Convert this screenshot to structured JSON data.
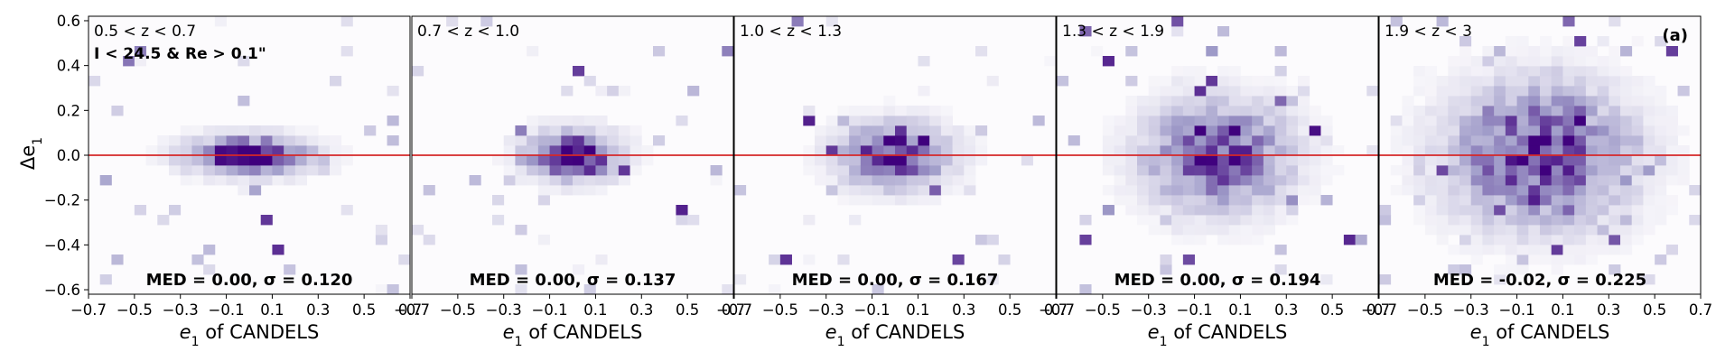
{
  "figure": {
    "ylabel_main": "Δe",
    "ylabel_sub": "1",
    "panel_tag": "(a)",
    "colors": {
      "ref_line": "#d62728",
      "cmap_low": "#fcfbfd",
      "cmap_high": "#3f007d"
    }
  },
  "chart_data": [
    {
      "type": "heatmap",
      "title": "0.5 < z < 0.7",
      "subtitle": "I < 24.5 & Re > 0.1\"",
      "stat": "MED = 0.00, σ = 0.120",
      "xlabel": "of CANDELS",
      "xlabel_var": "e",
      "xlabel_sub": "1",
      "xlim": [
        -0.7,
        0.7
      ],
      "ylim": [
        -0.62,
        0.62
      ],
      "xticks": [
        "−0.7",
        "−0.5",
        "−0.3",
        "−0.1",
        "0.1",
        "0.3",
        "0.5",
        "0.7"
      ],
      "reference_line_y": 0.0,
      "spread_x": 0.17,
      "spread_y": 0.055,
      "noise": 0.35,
      "peak": 1.0,
      "seed": 11
    },
    {
      "type": "heatmap",
      "title": "0.7 < z < 1.0",
      "stat": "MED = 0.00, σ = 0.137",
      "xlabel": "of CANDELS",
      "xlabel_var": "e",
      "xlabel_sub": "1",
      "xlim": [
        -0.7,
        0.7
      ],
      "ylim": [
        -0.62,
        0.62
      ],
      "xticks": [
        "−0.7",
        "−0.5",
        "−0.3",
        "−0.1",
        "0.1",
        "0.3",
        "0.5",
        "0.7"
      ],
      "reference_line_y": 0.0,
      "spread_x": 0.13,
      "spread_y": 0.07,
      "noise": 0.35,
      "peak": 1.0,
      "seed": 23
    },
    {
      "type": "heatmap",
      "title": "1.0 < z < 1.3",
      "stat": "MED = 0.00, σ = 0.167",
      "xlabel": "of CANDELS",
      "xlabel_var": "e",
      "xlabel_sub": "1",
      "xlim": [
        -0.7,
        0.7
      ],
      "ylim": [
        -0.62,
        0.62
      ],
      "xticks": [
        "−0.7",
        "−0.5",
        "−0.3",
        "−0.1",
        "0.1",
        "0.3",
        "0.5",
        "0.7"
      ],
      "reference_line_y": 0.0,
      "spread_x": 0.15,
      "spread_y": 0.09,
      "noise": 0.4,
      "peak": 0.95,
      "seed": 37
    },
    {
      "type": "heatmap",
      "title": "1.3 < z < 1.9",
      "stat": "MED = 0.00, σ = 0.194",
      "xlabel": "of CANDELS",
      "xlabel_var": "e",
      "xlabel_sub": "1",
      "xlim": [
        -0.7,
        0.7
      ],
      "ylim": [
        -0.62,
        0.62
      ],
      "xticks": [
        "−0.7",
        "−0.5",
        "−0.3",
        "−0.1",
        "0.1",
        "0.3",
        "0.5",
        "0.7"
      ],
      "reference_line_y": 0.0,
      "spread_x": 0.2,
      "spread_y": 0.15,
      "noise": 0.45,
      "peak": 0.85,
      "seed": 51
    },
    {
      "type": "heatmap",
      "title": "1.9 < z < 3",
      "stat": "MED = -0.02, σ = 0.225",
      "xlabel": "of CANDELS",
      "xlabel_var": "e",
      "xlabel_sub": "1",
      "xlim": [
        -0.7,
        0.7
      ],
      "ylim": [
        -0.62,
        0.62
      ],
      "xticks": [
        "−0.7",
        "−0.5",
        "−0.3",
        "−0.1",
        "0.1",
        "0.3",
        "0.5",
        "0.7"
      ],
      "reference_line_y": 0.0,
      "spread_x": 0.25,
      "spread_y": 0.2,
      "noise": 0.55,
      "peak": 0.85,
      "seed": 67
    }
  ],
  "y_axis": {
    "ticks": [
      0.6,
      0.4,
      0.2,
      0.0,
      -0.2,
      -0.4,
      -0.6
    ],
    "tick_labels": [
      "0.6",
      "0.4",
      "0.2",
      "0.0",
      "−0.2",
      "−0.4",
      "−0.6"
    ]
  }
}
